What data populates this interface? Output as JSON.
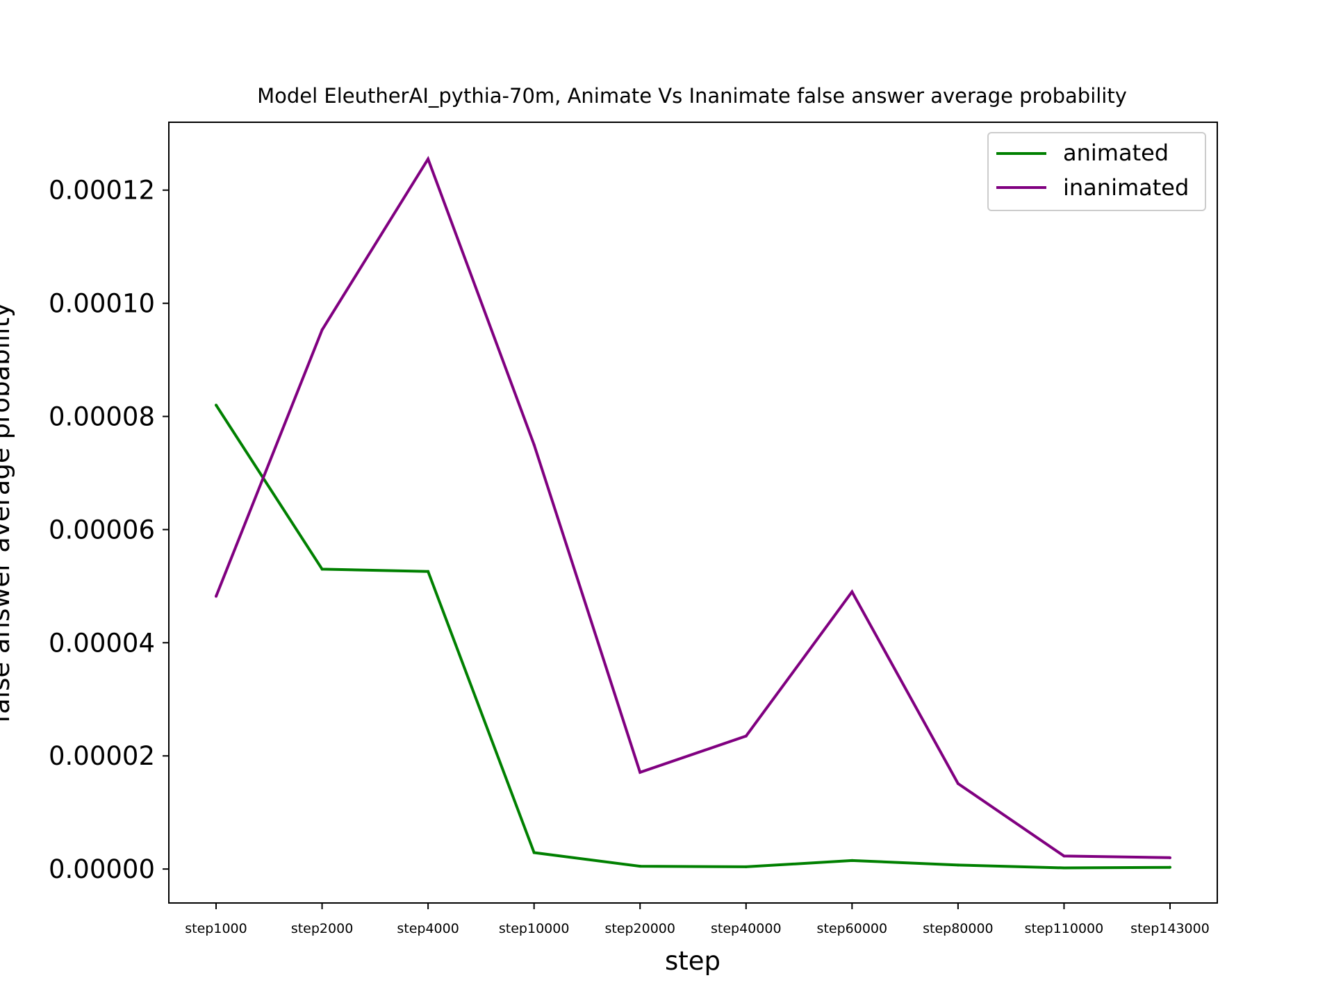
{
  "chart_data": {
    "type": "line",
    "title": "Model EleutherAI_pythia-70m, Animate Vs Inanimate false answer average probability",
    "xlabel": "step",
    "ylabel": "false answer average probability",
    "categories": [
      "step1000",
      "step2000",
      "step4000",
      "step10000",
      "step20000",
      "step40000",
      "step60000",
      "step80000",
      "step110000",
      "step143000"
    ],
    "yticks": [
      "0.00000",
      "0.00002",
      "0.00004",
      "0.00006",
      "0.00008",
      "0.00010",
      "0.00012"
    ],
    "ylim": [
      -6e-06,
      0.000132
    ],
    "grid": false,
    "legend_position": "top-right",
    "series": [
      {
        "name": "animated",
        "color": "#008000",
        "values": [
          8.2e-05,
          5.3e-05,
          5.26e-05,
          2.9e-06,
          5e-07,
          4e-07,
          1.5e-06,
          7e-07,
          2e-07,
          3e-07
        ]
      },
      {
        "name": "inanimated",
        "color": "#800080",
        "values": [
          4.82e-05,
          9.53e-05,
          0.0001255,
          7.5e-05,
          1.71e-05,
          2.35e-05,
          4.9e-05,
          1.51e-05,
          2.3e-06,
          2e-06
        ]
      }
    ]
  }
}
